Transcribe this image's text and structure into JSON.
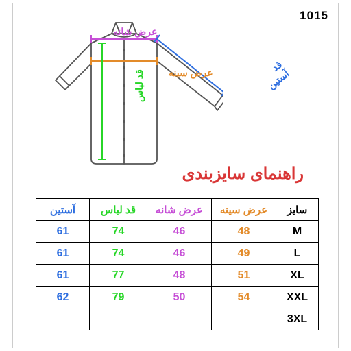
{
  "product_code": "1015",
  "title": "راهنمای سایزبندی",
  "colors": {
    "chest": "#e38b2a",
    "shoulder": "#c64fd6",
    "body": "#27d627",
    "sleeve": "#2f6fe0",
    "size_header": "#000000",
    "title": "#d93636",
    "shirt_outline": "#555555"
  },
  "labels": {
    "shoulder": "عرض شانه",
    "chest": "عرض سینه",
    "body": "قد لباس",
    "sleeve": "قد آستین"
  },
  "table": {
    "headers": {
      "size": "سایز",
      "chest": "عرض سینه",
      "shoulder": "عرض شانه",
      "body": "قد لباس",
      "sleeve": "آستین"
    },
    "rows": [
      {
        "size": "M",
        "chest": "48",
        "shoulder": "46",
        "body": "74",
        "sleeve": "61"
      },
      {
        "size": "L",
        "chest": "49",
        "shoulder": "46",
        "body": "74",
        "sleeve": "61"
      },
      {
        "size": "XL",
        "chest": "51",
        "shoulder": "48",
        "body": "77",
        "sleeve": "61"
      },
      {
        "size": "XXL",
        "chest": "54",
        "shoulder": "50",
        "body": "79",
        "sleeve": "62"
      },
      {
        "size": "3XL",
        "chest": "",
        "shoulder": "",
        "body": "",
        "sleeve": ""
      }
    ]
  }
}
